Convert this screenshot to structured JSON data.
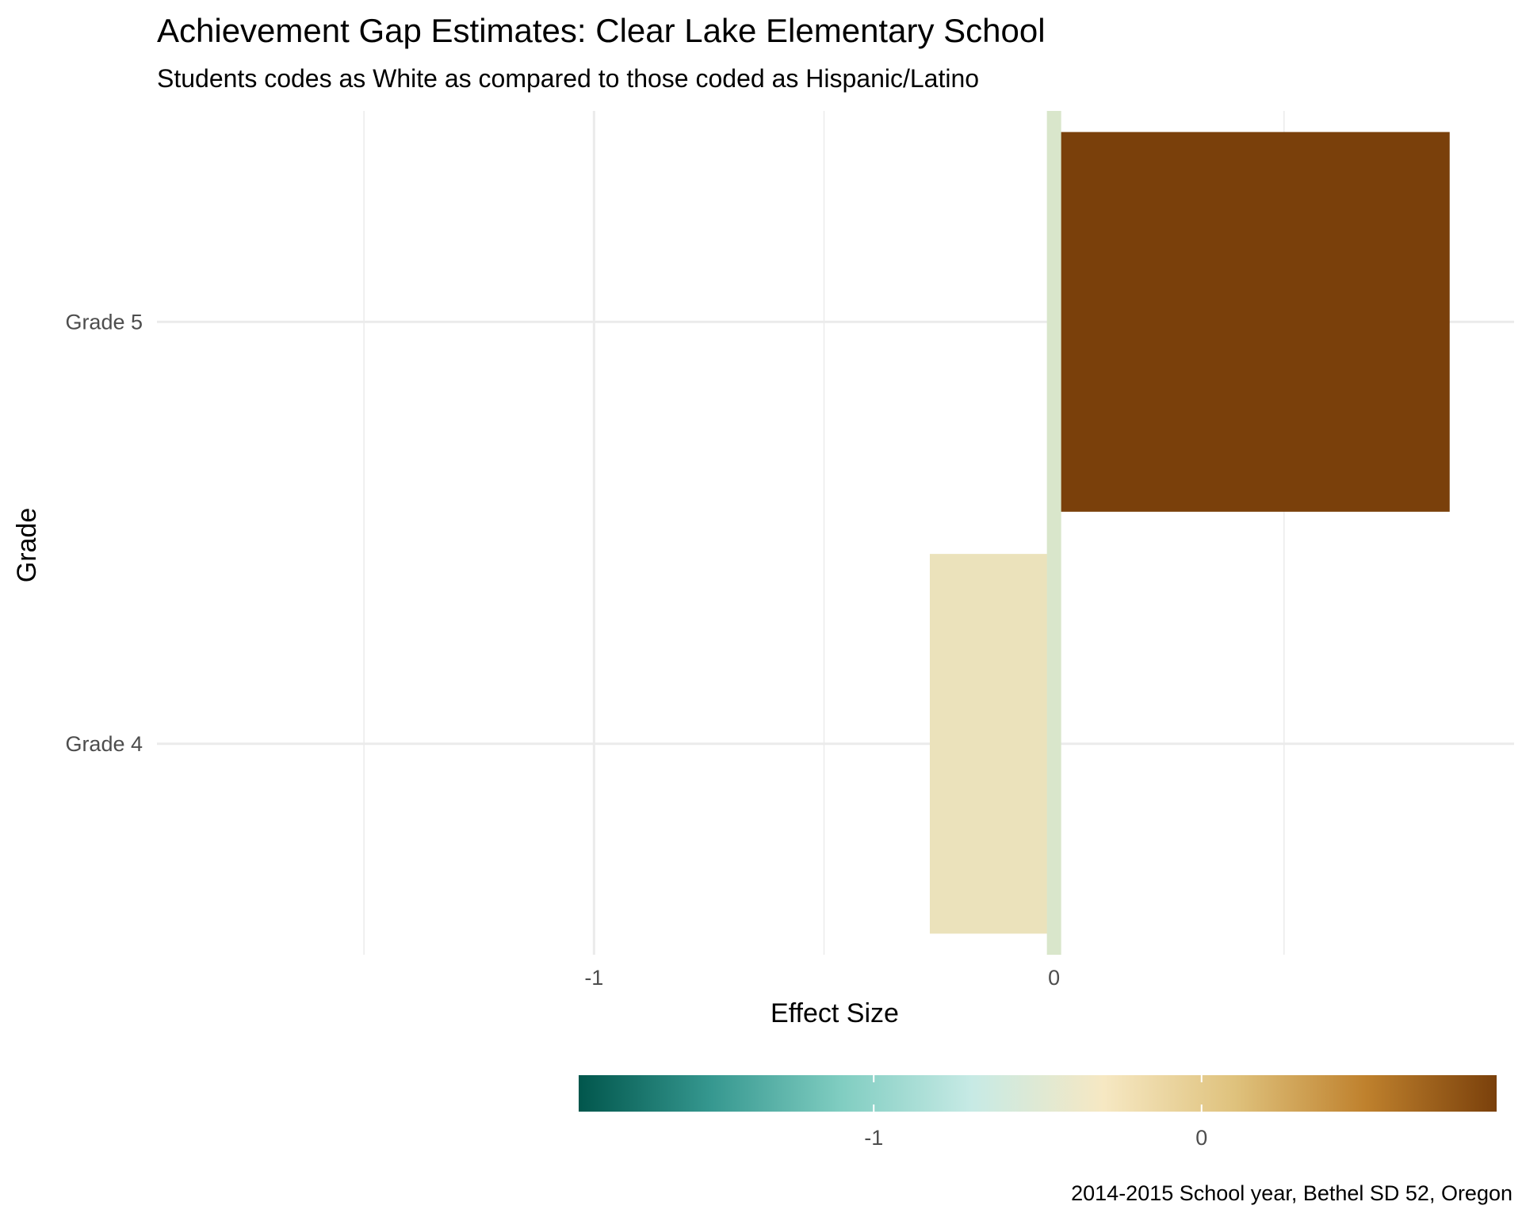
{
  "chart_data": {
    "type": "bar",
    "orientation": "horizontal",
    "title": "Achievement Gap Estimates: Clear Lake Elementary School",
    "subtitle": "Students codes as White as compared to those coded as Hispanic/Latino",
    "xlabel": "Effect Size",
    "ylabel": "Grade",
    "caption": "2014-2015 School year, Bethel SD 52, Oregon",
    "categories": [
      "Grade 4",
      "Grade 5"
    ],
    "values": [
      -0.27,
      0.86
    ],
    "bar_colors": [
      "#ebe2bb",
      "#7a400b"
    ],
    "xlim": [
      -1.95,
      1.0
    ],
    "x_ticks": [
      {
        "value": -1,
        "label": "-1"
      },
      {
        "value": 0,
        "label": "0"
      }
    ],
    "x_minor_grid": [
      -1.5,
      -0.5,
      0.5
    ],
    "reference_line": {
      "value": 0,
      "color": "#d9e6cb"
    },
    "grid": true,
    "legend": {
      "type": "colorbar",
      "placement": "bottom",
      "range": [
        -1.9,
        0.9
      ],
      "ticks": [
        {
          "value": -1,
          "label": "-1"
        },
        {
          "value": 0,
          "label": "0"
        }
      ],
      "colors": [
        "#01564c",
        "#35978f",
        "#80cdc1",
        "#c7eae5",
        "#f6e8c3",
        "#dfc27d",
        "#bf812d",
        "#7a400b"
      ]
    }
  }
}
